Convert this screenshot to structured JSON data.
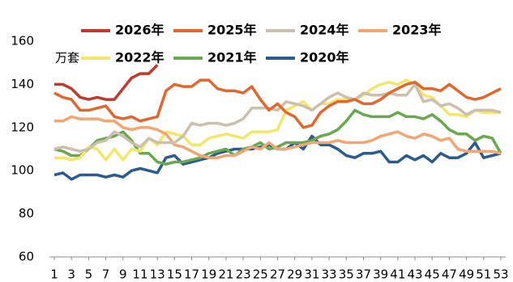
{
  "chart_data": {
    "type": "line",
    "y_label": "万套",
    "x": [
      1,
      2,
      3,
      4,
      5,
      6,
      7,
      8,
      9,
      10,
      11,
      12,
      13,
      14,
      15,
      16,
      17,
      18,
      19,
      20,
      21,
      22,
      23,
      24,
      25,
      26,
      27,
      28,
      29,
      30,
      31,
      32,
      33,
      34,
      35,
      36,
      37,
      38,
      39,
      40,
      41,
      42,
      43,
      44,
      45,
      46,
      47,
      48,
      49,
      50,
      51,
      52,
      53
    ],
    "xlim": [
      1,
      53
    ],
    "xticks": [
      1,
      3,
      5,
      7,
      9,
      11,
      13,
      15,
      17,
      19,
      21,
      23,
      25,
      27,
      29,
      31,
      33,
      35,
      37,
      39,
      41,
      43,
      45,
      47,
      49,
      51,
      53
    ],
    "ylim": [
      60,
      160
    ],
    "yticks": [
      60,
      80,
      100,
      120,
      140,
      160
    ],
    "grid": false,
    "series": [
      {
        "name": "2026年",
        "color": "#c0392b",
        "values": [
          140,
          140,
          138,
          134,
          133,
          134,
          133,
          133,
          138,
          143,
          145,
          145,
          149,
          null,
          null,
          null,
          null,
          null,
          null,
          null,
          null,
          null,
          null,
          null,
          null,
          null,
          null,
          null,
          null,
          null,
          null,
          null,
          null,
          null,
          null,
          null,
          null,
          null,
          null,
          null,
          null,
          null,
          null,
          null,
          null,
          null,
          null,
          null,
          null,
          null,
          null,
          null,
          null
        ]
      },
      {
        "name": "2025年",
        "color": "#e2672e",
        "values": [
          136,
          134,
          133,
          128,
          128,
          129,
          130,
          125,
          124,
          125,
          123,
          124,
          125,
          137,
          140,
          139,
          139,
          142,
          142,
          138,
          137,
          137,
          136,
          139,
          133,
          128,
          131,
          127,
          125,
          120,
          121,
          127,
          130,
          132,
          132,
          133,
          131,
          131,
          133,
          136,
          138,
          140,
          141,
          138,
          138,
          137,
          140,
          137,
          134,
          133,
          134,
          136,
          138
        ]
      },
      {
        "name": "2024年",
        "color": "#cdbfad",
        "values": [
          110,
          111,
          110,
          109,
          110,
          113,
          114,
          118,
          116,
          113,
          111,
          115,
          113,
          113,
          113,
          116,
          122,
          121,
          122,
          122,
          121,
          122,
          124,
          129,
          129,
          129,
          128,
          132,
          131,
          130,
          128,
          131,
          134,
          136,
          134,
          133,
          136,
          135,
          135,
          136,
          135,
          135,
          140,
          132,
          133,
          130,
          131,
          129,
          126,
          128,
          128,
          128,
          127
        ]
      },
      {
        "name": "2023年",
        "color": "#f1a673",
        "values": [
          123,
          123,
          125,
          124,
          124,
          124,
          123,
          123,
          120,
          119,
          120,
          120,
          119,
          117,
          112,
          111,
          109,
          107,
          106,
          106,
          107,
          107,
          109,
          111,
          110,
          113,
          110,
          110,
          111,
          112,
          113,
          113,
          113,
          114,
          113,
          113,
          113,
          114,
          116,
          117,
          118,
          116,
          115,
          117,
          116,
          114,
          115,
          110,
          109,
          109,
          109,
          109,
          108
        ]
      },
      {
        "name": "2022年",
        "color": "#f2e66b",
        "values": [
          106,
          106,
          105,
          106,
          111,
          110,
          105,
          110,
          105,
          110,
          109,
          115,
          112,
          118,
          117,
          116,
          112,
          112,
          115,
          116,
          117,
          116,
          115,
          118,
          118,
          118,
          119,
          128,
          130,
          132,
          128,
          131,
          131,
          133,
          133,
          133,
          135,
          138,
          140,
          141,
          140,
          142,
          140,
          135,
          134,
          130,
          126,
          126,
          125,
          128,
          127,
          127,
          127
        ]
      },
      {
        "name": "2021年",
        "color": "#6aa84f",
        "values": [
          110,
          109,
          107,
          107,
          110,
          114,
          115,
          116,
          118,
          114,
          108,
          108,
          104,
          103,
          104,
          104,
          105,
          106,
          108,
          109,
          110,
          107,
          110,
          111,
          113,
          110,
          111,
          113,
          113,
          113,
          114,
          116,
          117,
          119,
          123,
          128,
          126,
          125,
          125,
          125,
          127,
          125,
          125,
          124,
          126,
          123,
          119,
          117,
          117,
          114,
          116,
          115,
          108
        ]
      },
      {
        "name": "2020年",
        "color": "#2b5c8f",
        "values": [
          98,
          99,
          96,
          98,
          98,
          98,
          97,
          98,
          97,
          100,
          101,
          100,
          99,
          106,
          107,
          103,
          104,
          105,
          106,
          108,
          109,
          110,
          110,
          110,
          111,
          112,
          110,
          110,
          113,
          110,
          116,
          112,
          112,
          110,
          107,
          106,
          108,
          108,
          109,
          104,
          104,
          107,
          105,
          107,
          104,
          108,
          106,
          106,
          108,
          113,
          106,
          107,
          108
        ]
      }
    ]
  }
}
